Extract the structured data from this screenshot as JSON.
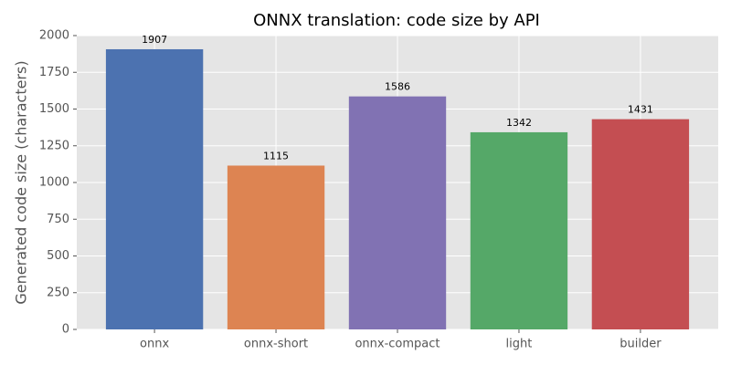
{
  "chart_data": {
    "type": "bar",
    "title": "ONNX translation: code size by API",
    "y_label": "Generated code size (characters)",
    "categories": [
      "onnx",
      "onnx-short",
      "onnx-compact",
      "light",
      "builder"
    ],
    "values": [
      1907,
      1115,
      1586,
      1342,
      1431
    ],
    "colors": [
      "#4c72b0",
      "#dd8452",
      "#8172b3",
      "#55a868",
      "#c44e52"
    ],
    "ylim": [
      0,
      2000
    ],
    "yticks": [
      0,
      250,
      500,
      750,
      1000,
      1250,
      1500,
      1750,
      2000
    ],
    "grid": true
  }
}
